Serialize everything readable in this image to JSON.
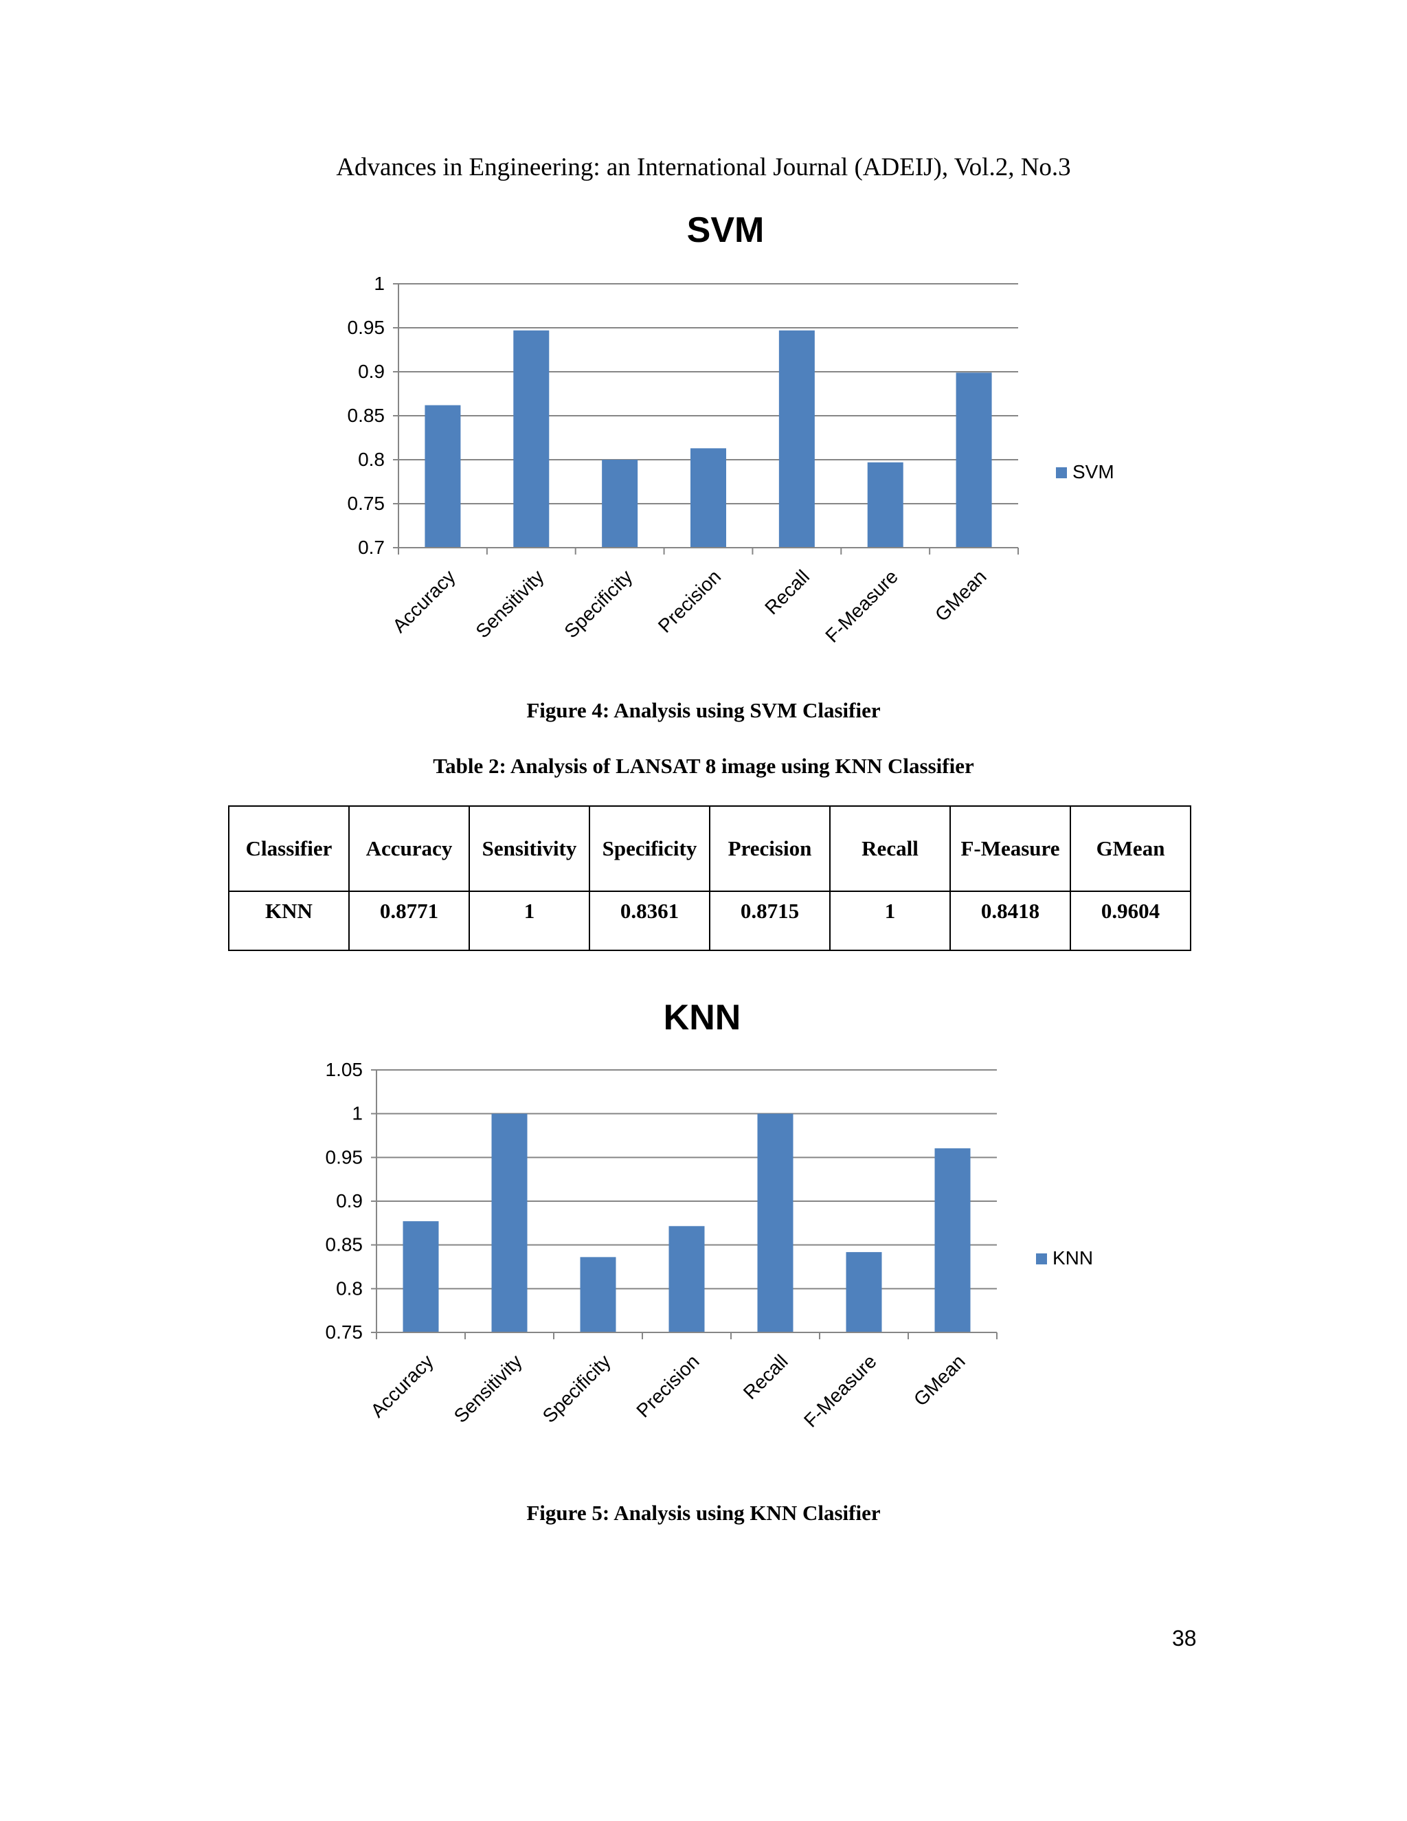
{
  "header": "Advances in Engineering: an International Journal (ADEIJ), Vol.2, No.3",
  "figure4_caption": "Figure 4: Analysis using SVM Clasifier",
  "table2_caption": "Table 2: Analysis of LANSAT 8 image using KNN Classifier",
  "table": {
    "headers": [
      "Classifier",
      "Accuracy",
      "Sensitivity",
      "Specificity",
      "Precision",
      "Recall",
      "F-Measure",
      "GMean"
    ],
    "rows": [
      [
        "KNN",
        "0.8771",
        "1",
        "0.8361",
        "0.8715",
        "1",
        "0.8418",
        "0.9604"
      ]
    ]
  },
  "figure5_caption": "Figure 5: Analysis using KNN Clasifier",
  "page_number": "38",
  "chart_data": [
    {
      "type": "bar",
      "title": "SVM",
      "categories": [
        "Accuracy",
        "Sensitivity",
        "Specificity",
        "Precision",
        "Recall",
        "F-Measure",
        "GMean"
      ],
      "series": [
        {
          "name": "SVM",
          "values": [
            0.862,
            0.947,
            0.8,
            0.813,
            0.947,
            0.797,
            0.899
          ]
        }
      ],
      "ylim": [
        0.7,
        1
      ],
      "yticks": [
        "0.7",
        "0.75",
        "0.8",
        "0.85",
        "0.9",
        "0.95",
        "1"
      ],
      "ytick_values": [
        0.7,
        0.75,
        0.8,
        0.85,
        0.9,
        0.95,
        1
      ],
      "grid": true,
      "legend": "right",
      "color": "#4f81bd"
    },
    {
      "type": "bar",
      "title": "KNN",
      "categories": [
        "Accuracy",
        "Sensitivity",
        "Specificity",
        "Precision",
        "Recall",
        "F-Measure",
        "GMean"
      ],
      "series": [
        {
          "name": "KNN",
          "values": [
            0.8771,
            1,
            0.8361,
            0.8715,
            1,
            0.8418,
            0.9604
          ]
        }
      ],
      "ylim": [
        0.75,
        1.05
      ],
      "yticks": [
        "0.75",
        "0.8",
        "0.85",
        "0.9",
        "0.95",
        "1",
        "1.05"
      ],
      "ytick_values": [
        0.75,
        0.8,
        0.85,
        0.9,
        0.95,
        1,
        1.05
      ],
      "grid": true,
      "legend": "right",
      "color": "#4f81bd"
    }
  ]
}
